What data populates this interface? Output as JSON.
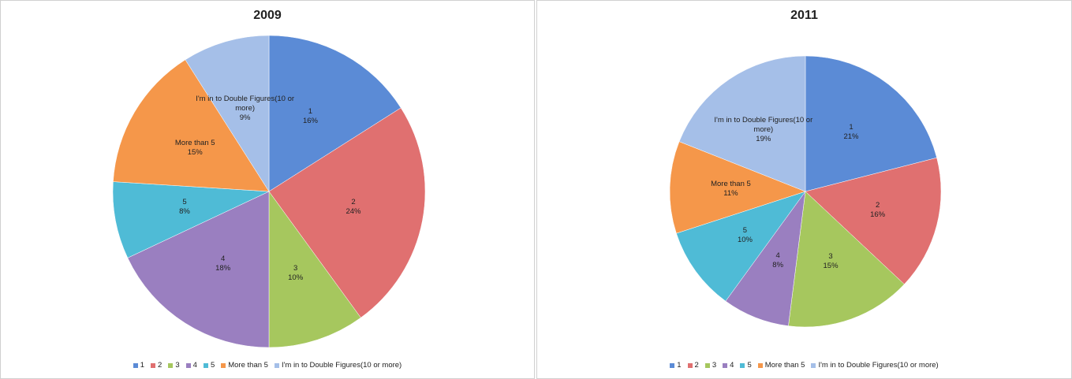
{
  "chart_data": [
    {
      "type": "pie",
      "title": "2009",
      "categories": [
        "1",
        "2",
        "3",
        "4",
        "5",
        "More than 5",
        "I'm in to Double Figures(10 or more)"
      ],
      "values": [
        16,
        24,
        10,
        18,
        8,
        15,
        9
      ],
      "value_labels": [
        "16%",
        "24%",
        "10%",
        "18%",
        "8%",
        "15%",
        "9%"
      ],
      "colors": [
        "#5b8bd6",
        "#e07070",
        "#a6c75e",
        "#9a7fc0",
        "#4fbbd6",
        "#f5974a",
        "#a5bfe8"
      ],
      "legend": "bottom"
    },
    {
      "type": "pie",
      "title": "2011",
      "categories": [
        "1",
        "2",
        "3",
        "4",
        "5",
        "More than 5",
        "I'm in to Double Figures(10 or more)"
      ],
      "values": [
        21,
        16,
        15,
        8,
        10,
        11,
        19
      ],
      "value_labels": [
        "21%",
        "16%",
        "15%",
        "8%",
        "10%",
        "11%",
        "19%"
      ],
      "colors": [
        "#5b8bd6",
        "#e07070",
        "#a6c75e",
        "#9a7fc0",
        "#4fbbd6",
        "#f5974a",
        "#a5bfe8"
      ],
      "legend": "bottom"
    }
  ]
}
